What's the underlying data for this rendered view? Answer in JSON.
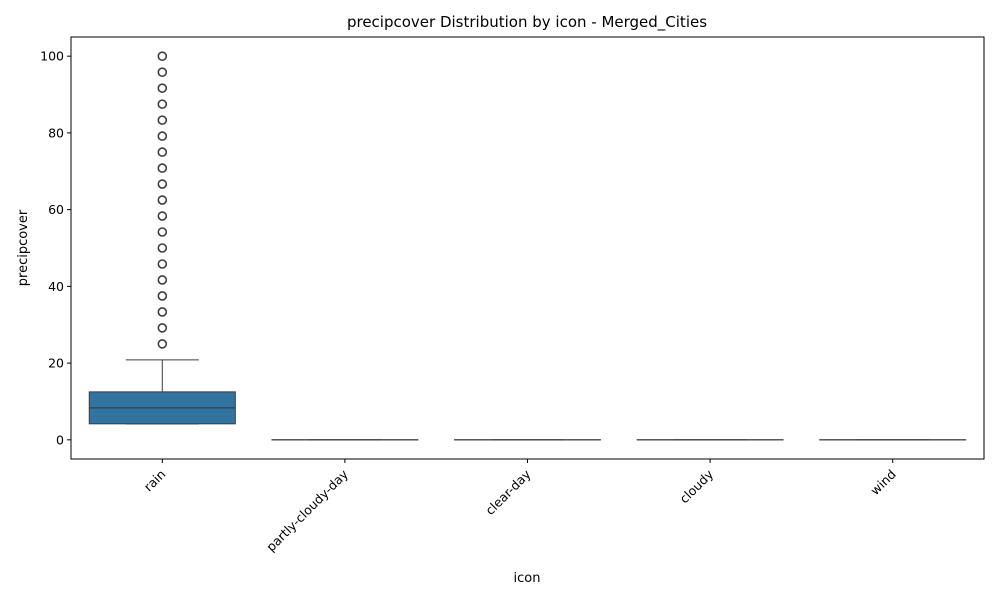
{
  "chart_data": {
    "type": "box",
    "title": "precipcover Distribution by icon - Merged_Cities",
    "xlabel": "icon",
    "ylabel": "precipcover",
    "ylim": [
      -5,
      105
    ],
    "yticks": [
      0,
      20,
      40,
      60,
      80,
      100
    ],
    "grid": false,
    "box_color": "#3274a1",
    "line_color": "#3d3d3d",
    "categories": [
      "rain",
      "partly-cloudy-day",
      "clear-day",
      "cloudy",
      "wind"
    ],
    "boxes": [
      {
        "category": "rain",
        "whisker_low": 4.17,
        "q1": 4.17,
        "median": 8.33,
        "q3": 12.5,
        "whisker_high": 20.83,
        "outliers": [
          25,
          29.17,
          33.33,
          37.5,
          41.67,
          45.83,
          50,
          54.17,
          58.33,
          62.5,
          66.67,
          70.83,
          75,
          79.17,
          83.33,
          87.5,
          91.67,
          95.83,
          100
        ]
      },
      {
        "category": "partly-cloudy-day",
        "whisker_low": 0,
        "q1": 0,
        "median": 0,
        "q3": 0,
        "whisker_high": 0,
        "outliers": []
      },
      {
        "category": "clear-day",
        "whisker_low": 0,
        "q1": 0,
        "median": 0,
        "q3": 0,
        "whisker_high": 0,
        "outliers": []
      },
      {
        "category": "cloudy",
        "whisker_low": 0,
        "q1": 0,
        "median": 0,
        "q3": 0,
        "whisker_high": 0,
        "outliers": []
      },
      {
        "category": "wind",
        "whisker_low": 0,
        "q1": 0,
        "median": 0,
        "q3": 0,
        "whisker_high": 0,
        "outliers": []
      }
    ]
  }
}
